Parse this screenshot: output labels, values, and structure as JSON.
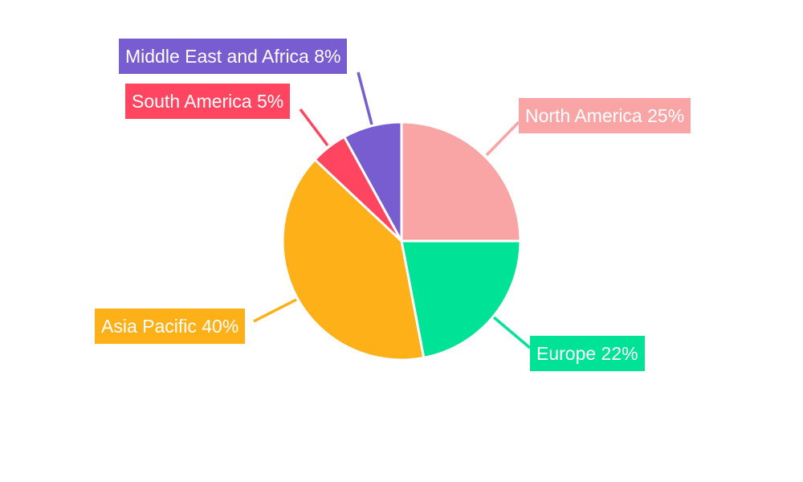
{
  "chart_data": {
    "type": "pie",
    "start_angle": "12 o'clock, clockwise",
    "legend": "none",
    "slices": [
      {
        "label": "North America",
        "value": 25,
        "text": "North America 25%",
        "color": "#f9a5a6"
      },
      {
        "label": "Europe",
        "value": 22,
        "text": "Europe 22%",
        "color": "#00e396"
      },
      {
        "label": "Asia Pacific",
        "value": 40,
        "text": "Asia Pacific 40%",
        "color": "#feb019"
      },
      {
        "label": "South America",
        "value": 5,
        "text": "South America 5%",
        "color": "#ff4560"
      },
      {
        "label": "Middle East and Africa",
        "value": 8,
        "text": "Middle East and Africa 8%",
        "color": "#775dd0"
      }
    ]
  }
}
